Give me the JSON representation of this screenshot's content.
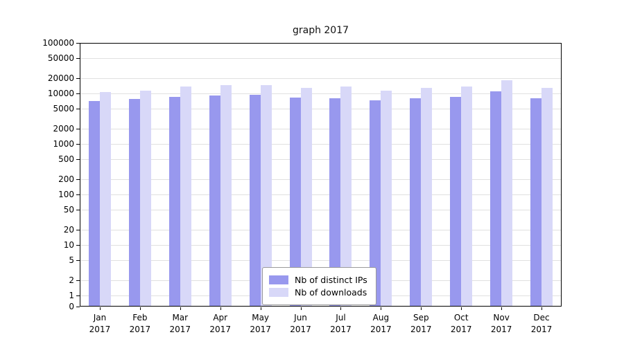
{
  "title": "graph 2017",
  "chart_data": {
    "type": "bar",
    "title": "graph 2017",
    "categories": [
      "Jan 2017",
      "Feb 2017",
      "Mar 2017",
      "Apr 2017",
      "May 2017",
      "Jun 2017",
      "Jul 2017",
      "Aug 2017",
      "Sep 2017",
      "Oct 2017",
      "Nov 2017",
      "Dec 2017"
    ],
    "series": [
      {
        "name": "Nb of distinct IPs",
        "color": "#9898ee",
        "values": [
          7000,
          7700,
          8600,
          9100,
          9400,
          8400,
          8000,
          7400,
          7900,
          8600,
          11000,
          8100
        ]
      },
      {
        "name": "Nb of downloads",
        "color": "#d8d8f8",
        "values": [
          10500,
          11500,
          13500,
          14500,
          14500,
          12800,
          13500,
          11500,
          13000,
          13500,
          18000,
          13000
        ]
      }
    ],
    "y_ticks": [
      100000,
      50000,
      20000,
      10000,
      5000,
      2000,
      1000,
      500,
      200,
      100,
      50,
      20,
      10,
      5,
      2,
      1,
      0
    ],
    "y_scale": "symlog (linear below 1, log10 above)",
    "ylim": [
      0,
      100000
    ],
    "xlabel": "",
    "ylabel": "",
    "grid": true,
    "legend": {
      "position": "lower center",
      "entries": [
        "Nb of distinct IPs",
        "Nb of downloads"
      ]
    }
  },
  "colors": {
    "distinct_ips": "#9898ee",
    "downloads": "#d8d8f8",
    "grid": "#e0e0e0",
    "axis": "#000000",
    "background": "#ffffff"
  }
}
